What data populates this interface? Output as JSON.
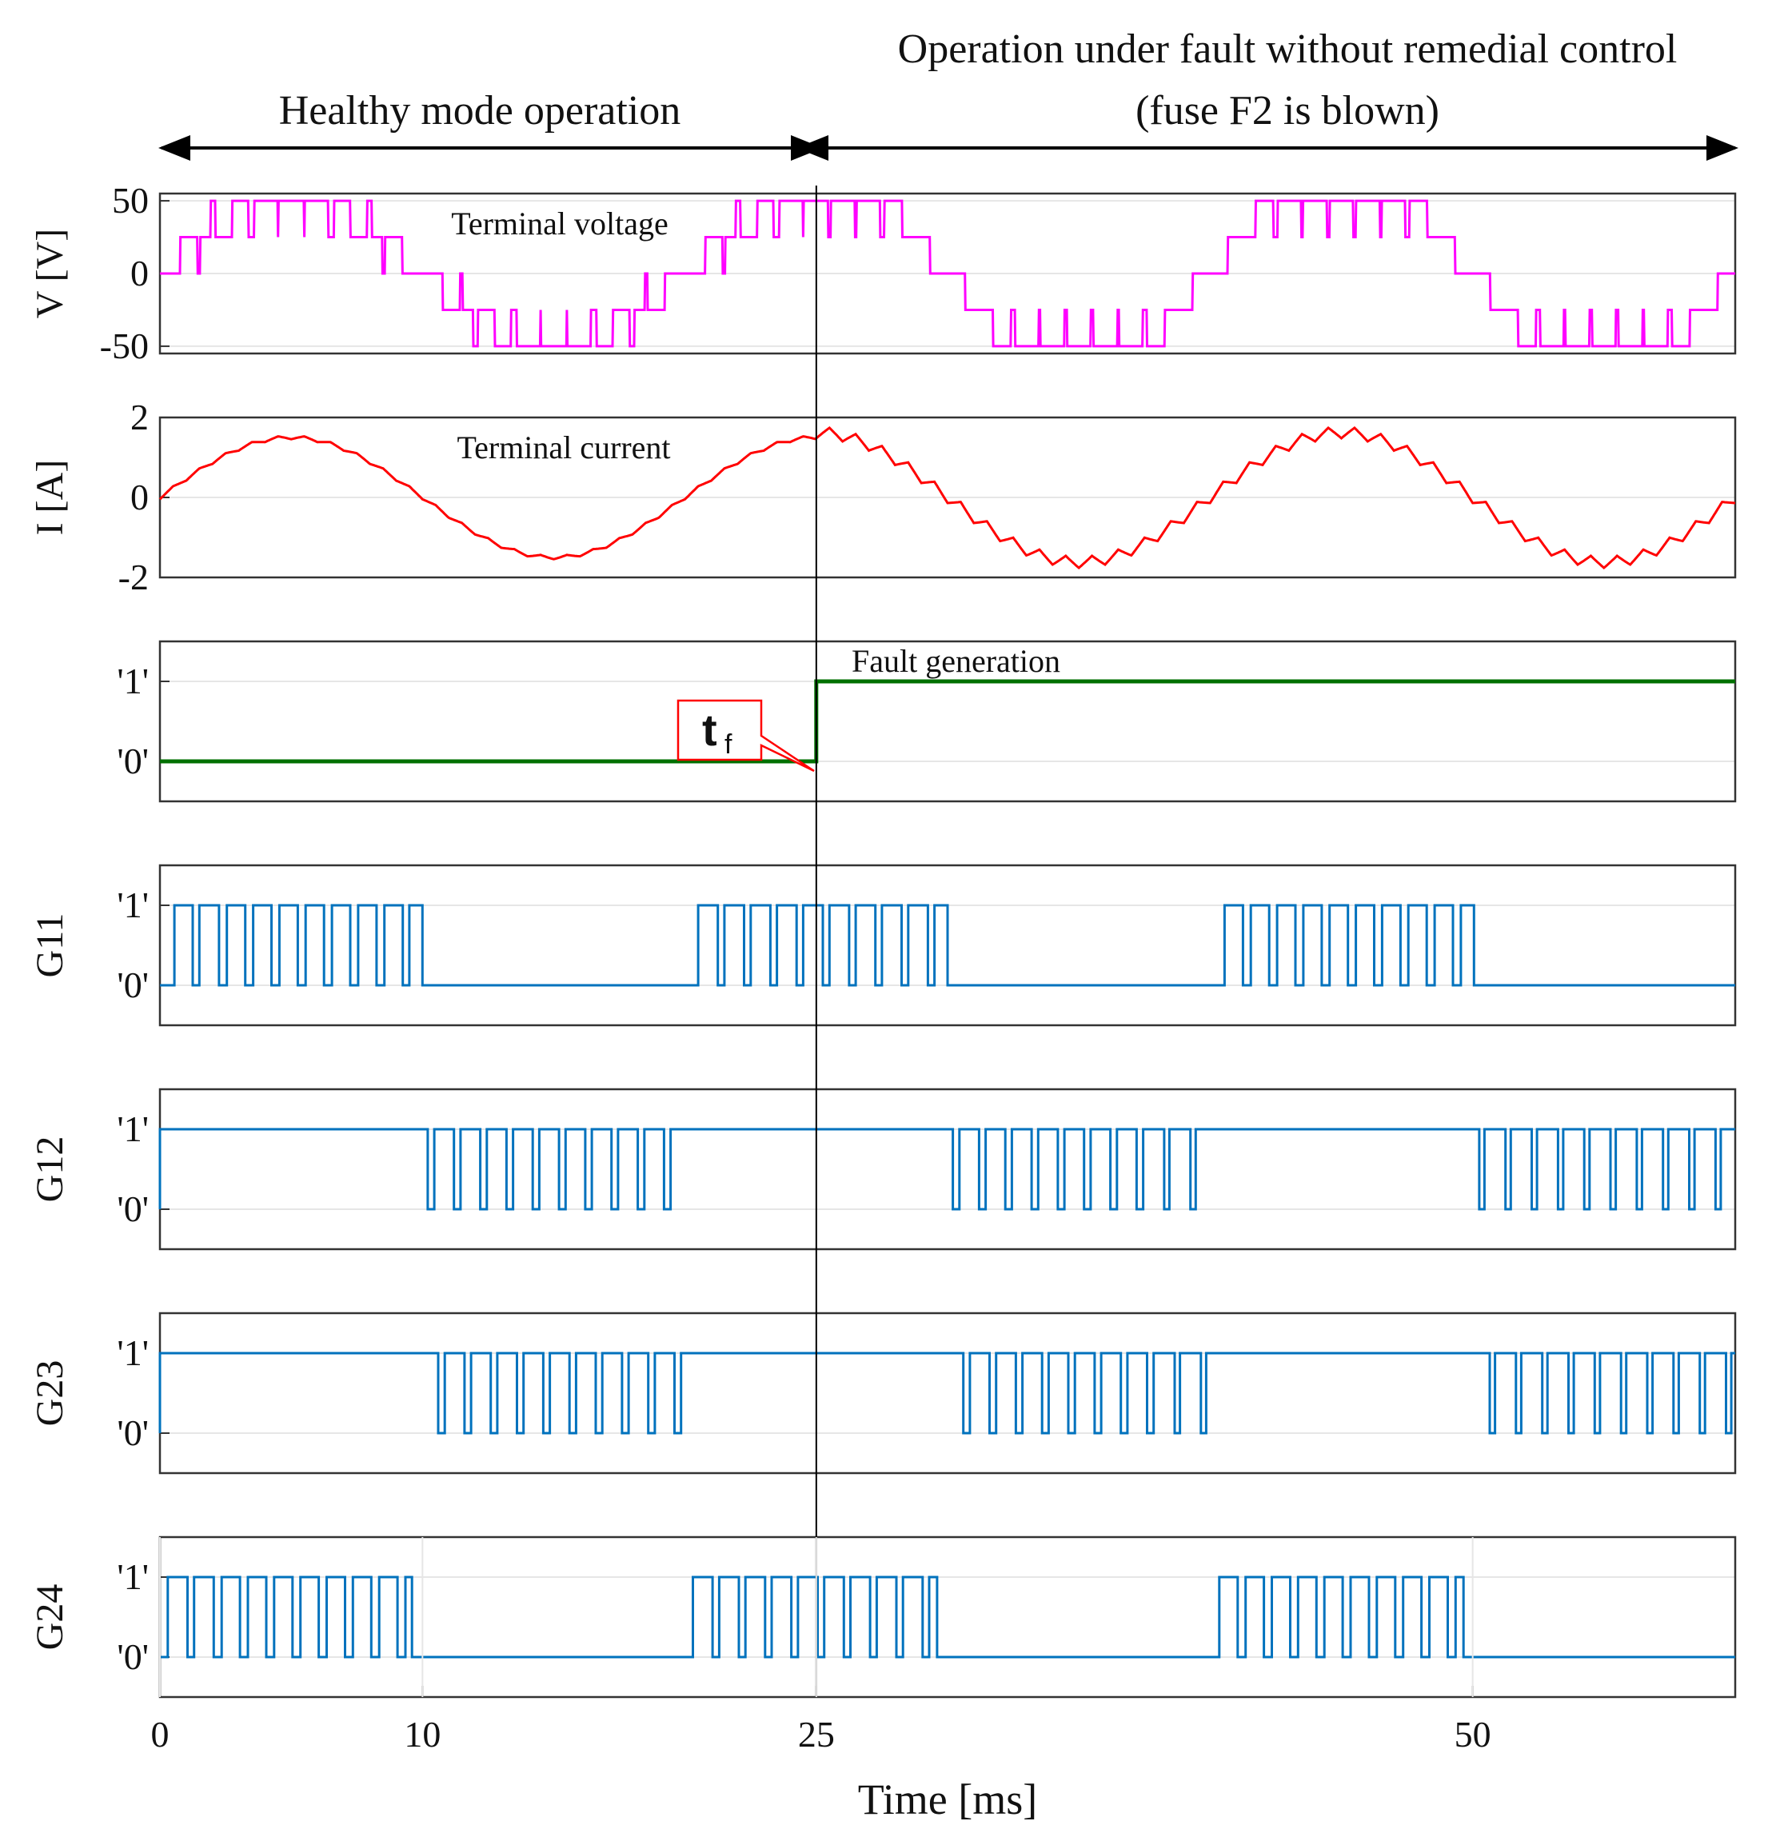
{
  "chart_data": {
    "type": "line",
    "title": "",
    "annotations": {
      "healthy": "Healthy mode operation",
      "fault_line1": "Operation under fault without remedial control",
      "fault_line2": "(fuse F2 is blown)",
      "terminal_voltage": "Terminal voltage",
      "terminal_current": "Terminal current",
      "fault_generation": "Fault generation",
      "tf_main": "t",
      "tf_sub": "f"
    },
    "xlabel": "Time [ms]",
    "xlim": [
      0,
      60
    ],
    "xticks": [
      {
        "v": 0,
        "label": "0"
      },
      {
        "v": 10,
        "label": "10"
      },
      {
        "v": 25,
        "label": "25"
      },
      {
        "v": 50,
        "label": "50"
      }
    ],
    "fault_time_ms": 25,
    "fundamental_period_ms": 20,
    "switching_period_ms": 1,
    "colors": {
      "voltage": "#ff00ff",
      "current": "#ff0000",
      "fault": "#007000",
      "gate": "#0072bd"
    },
    "panels": [
      {
        "id": "voltage",
        "ylabel": "V [V]",
        "ylim": [
          -55,
          55
        ],
        "yticks": [
          {
            "v": 50,
            "label": "50"
          },
          {
            "v": 0,
            "label": "0"
          },
          {
            "v": -50,
            "label": "-50"
          }
        ],
        "levels_V": [
          -50,
          -25,
          0,
          25,
          50
        ],
        "series": "five-level staircase PWM, 20 ms period, distorted after fault"
      },
      {
        "id": "current",
        "ylabel": "I [A]",
        "ylim": [
          -2,
          2
        ],
        "yticks": [
          {
            "v": 2,
            "label": "2"
          },
          {
            "v": 0,
            "label": "0"
          },
          {
            "v": -2,
            "label": "-2"
          }
        ],
        "amplitude_A": 1.5,
        "series": "sinusoid 20 ms period with switching ripple, larger ripple after fault"
      },
      {
        "id": "fault",
        "ylabel": "",
        "ylim": [
          -0.5,
          1.5
        ],
        "yticks": [
          {
            "v": 1,
            "label": "'1'"
          },
          {
            "v": 0,
            "label": "'0'"
          }
        ],
        "points": [
          [
            0,
            0
          ],
          [
            25,
            0
          ],
          [
            25,
            1
          ],
          [
            60,
            1
          ]
        ]
      },
      {
        "id": "G11",
        "ylabel": "G11",
        "ylim": [
          -0.5,
          1.5
        ],
        "yticks": [
          {
            "v": 1,
            "label": "'1'"
          },
          {
            "v": 0,
            "label": "'0'"
          }
        ],
        "pulse_windows_ms": [
          [
            0.5,
            10
          ],
          [
            20.5,
            30
          ],
          [
            40.5,
            50
          ]
        ]
      },
      {
        "id": "G12",
        "ylabel": "G12",
        "ylim": [
          -0.5,
          1.5
        ],
        "yticks": [
          {
            "v": 1,
            "label": "'1'"
          },
          {
            "v": 0,
            "label": "'0'"
          }
        ],
        "pulse_windows_ms": [
          [
            10.2,
            19.6
          ],
          [
            30.2,
            39.6
          ],
          [
            50.2,
            60
          ]
        ]
      },
      {
        "id": "G23",
        "ylabel": "G23",
        "ylim": [
          -0.5,
          1.5
        ],
        "yticks": [
          {
            "v": 1,
            "label": "'1'"
          },
          {
            "v": 0,
            "label": "'0'"
          }
        ],
        "pulse_windows_ms": [
          [
            10.6,
            20
          ],
          [
            30.6,
            40
          ],
          [
            50.6,
            60
          ]
        ]
      },
      {
        "id": "G24",
        "ylabel": "G24",
        "ylim": [
          -0.5,
          1.5
        ],
        "yticks": [
          {
            "v": 1,
            "label": "'1'"
          },
          {
            "v": 0,
            "label": "'0'"
          }
        ],
        "pulse_windows_ms": [
          [
            0.3,
            9.6
          ],
          [
            20.3,
            29.6
          ],
          [
            40.3,
            49.6
          ]
        ]
      }
    ]
  }
}
